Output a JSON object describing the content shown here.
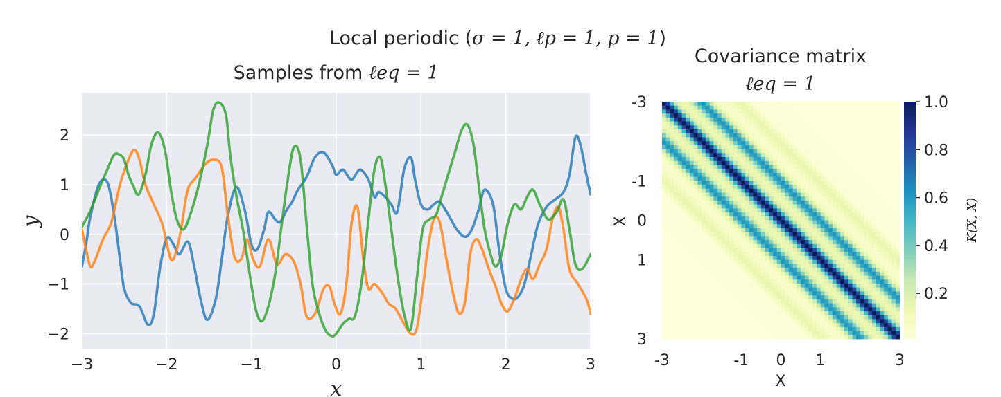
{
  "figure": {
    "suptitle_prefix": "Local periodic (",
    "suptitle_math": "σ = 1, ℓp = 1, p = 1",
    "suptitle_suffix": ")"
  },
  "chart_data": [
    {
      "type": "line",
      "title_prefix": "Samples from ",
      "title_math": "ℓeq = 1",
      "xlabel": "x",
      "ylabel": "y",
      "xlim": [
        -3,
        3
      ],
      "ylim": [
        -2.3,
        2.85
      ],
      "xticks": [
        -3,
        -2,
        -1,
        0,
        1,
        2,
        3
      ],
      "xtick_labels": [
        "−3",
        "−2",
        "−1",
        "0",
        "1",
        "2",
        "3"
      ],
      "yticks": [
        -2,
        -1,
        0,
        1,
        2
      ],
      "ytick_labels": [
        "−2",
        "−1",
        "0",
        "1",
        "2"
      ],
      "grid": true,
      "colors": [
        "#1f77b4",
        "#ff7f0e",
        "#2ca02c"
      ],
      "series": [
        {
          "x": [
            -3,
            -2.95,
            -2.9,
            -2.8,
            -2.7,
            -2.62,
            -2.55,
            -2.5,
            -2.42,
            -2.32,
            -2.22,
            -2.15,
            -2.08,
            -2.0,
            -1.92,
            -1.85,
            -1.75,
            -1.68,
            -1.6,
            -1.52,
            -1.42,
            -1.35,
            -1.28,
            -1.18,
            -1.08,
            -1.0,
            -0.93,
            -0.85,
            -0.8,
            -0.72,
            -0.66,
            -0.58,
            -0.52,
            -0.45,
            -0.35,
            -0.25,
            -0.15,
            -0.05,
            0.0,
            0.08,
            0.18,
            0.28,
            0.38,
            0.45,
            0.5,
            0.58,
            0.65,
            0.72,
            0.8,
            0.88,
            0.93,
            1.0,
            1.08,
            1.15,
            1.22,
            1.32,
            1.42,
            1.52,
            1.6,
            1.68,
            1.75,
            1.85,
            1.92,
            2.0,
            2.08,
            2.15,
            2.22,
            2.3,
            2.38,
            2.48,
            2.58,
            2.68,
            2.75,
            2.82,
            2.88,
            2.95,
            3.0
          ],
          "y": [
            -0.65,
            -0.2,
            0.35,
            1.0,
            1.05,
            0.4,
            -0.5,
            -1.1,
            -1.38,
            -1.45,
            -1.82,
            -1.6,
            -0.7,
            -0.08,
            -0.2,
            -0.4,
            -0.15,
            -0.6,
            -1.3,
            -1.72,
            -1.3,
            -0.5,
            0.35,
            0.95,
            0.5,
            -0.2,
            -0.3,
            0.1,
            0.45,
            0.3,
            0.25,
            0.5,
            0.65,
            0.9,
            1.15,
            1.55,
            1.65,
            1.4,
            1.2,
            1.3,
            1.1,
            1.3,
            1.1,
            0.75,
            0.85,
            0.75,
            0.6,
            0.45,
            1.3,
            1.55,
            1.1,
            0.6,
            0.5,
            0.6,
            0.65,
            0.4,
            0.1,
            -0.05,
            0.1,
            0.5,
            0.9,
            0.6,
            -0.3,
            -1.1,
            -1.3,
            -1.25,
            -1.0,
            -0.4,
            0.2,
            0.55,
            0.7,
            0.85,
            1.2,
            1.95,
            1.8,
            1.2,
            0.8
          ]
        },
        {
          "x": [
            -3,
            -2.95,
            -2.9,
            -2.85,
            -2.75,
            -2.65,
            -2.55,
            -2.45,
            -2.38,
            -2.32,
            -2.25,
            -2.15,
            -2.05,
            -1.95,
            -1.88,
            -1.82,
            -1.75,
            -1.65,
            -1.55,
            -1.45,
            -1.35,
            -1.28,
            -1.2,
            -1.12,
            -1.05,
            -0.98,
            -0.9,
            -0.8,
            -0.7,
            -0.6,
            -0.5,
            -0.42,
            -0.35,
            -0.25,
            -0.15,
            -0.08,
            -0.02,
            0.05,
            0.12,
            0.18,
            0.25,
            0.32,
            0.38,
            0.45,
            0.55,
            0.62,
            0.7,
            0.8,
            0.88,
            0.95,
            1.02,
            1.08,
            1.15,
            1.22,
            1.3,
            1.38,
            1.45,
            1.52,
            1.58,
            1.65,
            1.72,
            1.8,
            1.88,
            1.95,
            2.02,
            2.1,
            2.18,
            2.25,
            2.32,
            2.4,
            2.48,
            2.55,
            2.62,
            2.68,
            2.75,
            2.85,
            2.95,
            3.0
          ],
          "y": [
            0.1,
            -0.3,
            -0.65,
            -0.55,
            -0.1,
            0.25,
            1.0,
            1.5,
            1.7,
            1.5,
            1.0,
            0.6,
            0.2,
            -0.5,
            -0.3,
            0.2,
            0.9,
            1.15,
            1.4,
            1.5,
            1.35,
            0.4,
            -0.45,
            -0.5,
            -0.1,
            -0.5,
            -0.65,
            -0.1,
            -0.6,
            -0.4,
            -0.55,
            -1.0,
            -1.65,
            -1.6,
            -1.1,
            -1.05,
            -1.4,
            -1.6,
            -1.0,
            0.2,
            0.55,
            -0.5,
            -1.1,
            -1.0,
            -1.2,
            -1.4,
            -1.5,
            -1.8,
            -2.0,
            -1.9,
            -1.1,
            -0.3,
            0.3,
            0.25,
            -0.5,
            -1.2,
            -1.6,
            -1.35,
            -0.4,
            -0.1,
            -0.3,
            -0.7,
            -1.05,
            -1.4,
            -1.55,
            -1.3,
            -0.9,
            -0.7,
            -0.9,
            -0.6,
            -0.3,
            0.3,
            0.55,
            0.1,
            -0.7,
            -1.0,
            -1.3,
            -1.6
          ]
        },
        {
          "x": [
            -3,
            -2.95,
            -2.88,
            -2.8,
            -2.7,
            -2.62,
            -2.55,
            -2.5,
            -2.45,
            -2.4,
            -2.33,
            -2.25,
            -2.18,
            -2.1,
            -2.02,
            -1.95,
            -1.88,
            -1.8,
            -1.72,
            -1.62,
            -1.52,
            -1.45,
            -1.38,
            -1.3,
            -1.25,
            -1.18,
            -1.1,
            -1.02,
            -0.95,
            -0.88,
            -0.8,
            -0.72,
            -0.65,
            -0.58,
            -0.5,
            -0.42,
            -0.35,
            -0.28,
            -0.2,
            -0.12,
            -0.05,
            0.0,
            0.08,
            0.15,
            0.22,
            0.3,
            0.38,
            0.45,
            0.52,
            0.58,
            0.65,
            0.72,
            0.8,
            0.88,
            0.95,
            1.02,
            1.1,
            1.18,
            1.25,
            1.32,
            1.4,
            1.48,
            1.55,
            1.62,
            1.68,
            1.75,
            1.82,
            1.88,
            1.95,
            2.02,
            2.1,
            2.18,
            2.25,
            2.32,
            2.4,
            2.5,
            2.6,
            2.68,
            2.75,
            2.82,
            2.9,
            3.0
          ],
          "y": [
            0.15,
            0.3,
            0.55,
            0.9,
            1.3,
            1.6,
            1.6,
            1.5,
            1.2,
            1.0,
            0.8,
            1.2,
            1.8,
            2.05,
            1.7,
            0.9,
            0.3,
            0.1,
            0.4,
            1.0,
            1.8,
            2.5,
            2.65,
            2.4,
            1.6,
            0.8,
            0.1,
            -0.8,
            -1.5,
            -1.75,
            -1.45,
            -0.8,
            0.1,
            1.0,
            1.75,
            1.5,
            0.2,
            -1.0,
            -1.6,
            -1.95,
            -2.05,
            -2.0,
            -1.8,
            -1.7,
            -1.65,
            -0.95,
            0.3,
            1.3,
            1.55,
            1.0,
            0.1,
            -0.8,
            -1.6,
            -1.9,
            -0.9,
            0.1,
            0.3,
            0.4,
            0.8,
            1.2,
            1.65,
            2.1,
            2.2,
            1.8,
            1.0,
            0.1,
            -0.4,
            -0.65,
            -0.4,
            0.2,
            0.6,
            0.5,
            0.75,
            0.9,
            0.6,
            0.3,
            0.45,
            0.7,
            0.1,
            -0.6,
            -0.7,
            -0.4
          ]
        }
      ]
    },
    {
      "type": "heatmap",
      "title_line1": "Covariance matrix",
      "title_math": "ℓeq = 1",
      "xlabel": "X",
      "ylabel": "X",
      "xticks": [
        -3,
        -1,
        0,
        1,
        3
      ],
      "xtick_labels": [
        "-3",
        "-1",
        "0",
        "1",
        "3"
      ],
      "yticks": [
        -3,
        -1,
        0,
        1,
        3
      ],
      "ytick_labels": [
        "-3",
        "-1",
        "0",
        "1",
        "3"
      ],
      "range": [
        -3,
        3
      ],
      "kernel": "local periodic",
      "params": {
        "sigma": 1,
        "l_p": 1,
        "p": 1,
        "l_eq": 1
      },
      "colormap": "YlGnBu",
      "colorbar": {
        "label": "K(X, X)",
        "ticks": [
          0.2,
          0.4,
          0.6,
          0.8,
          1.0
        ],
        "tick_labels": [
          "0.2",
          "0.4",
          "0.6",
          "0.8",
          "1.0"
        ],
        "vmin": 0.01,
        "vmax": 1.0
      }
    }
  ]
}
